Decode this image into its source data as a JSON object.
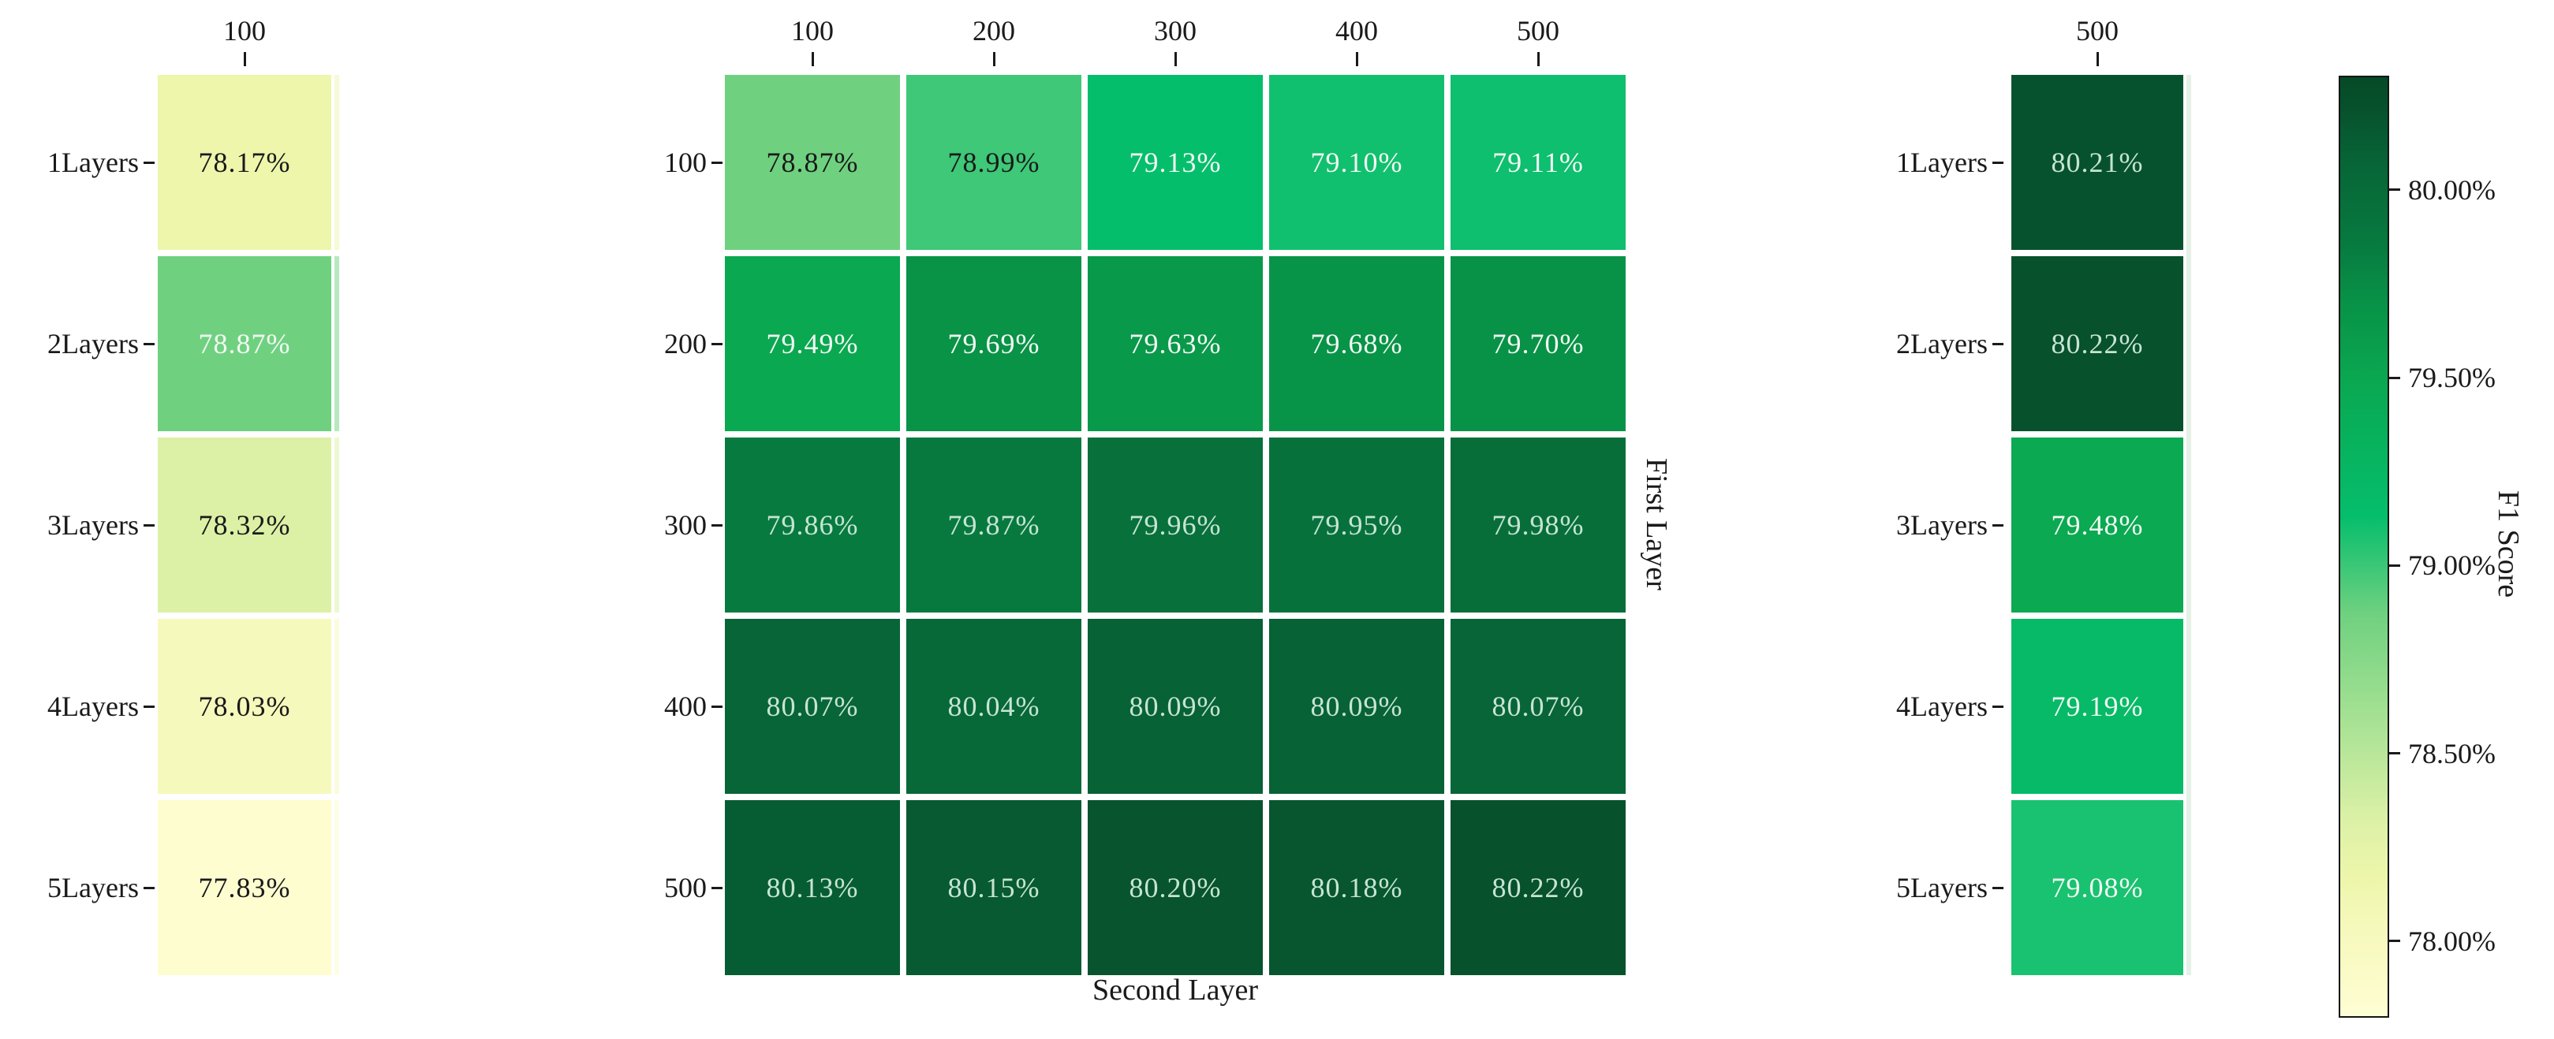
{
  "figure": {
    "background": "#ffffff",
    "text_color": "#1a1a1a"
  },
  "chart_data": {
    "type": "heatmap",
    "value_unit": "%",
    "shared_colormap": {
      "vmin": 77.8,
      "vmax": 80.3,
      "stops": [
        [
          77.8,
          "#ffffd8"
        ],
        [
          77.83,
          "#fdfdd0"
        ],
        [
          78.03,
          "#f6f9bc"
        ],
        [
          78.17,
          "#edf6ab"
        ],
        [
          78.32,
          "#dcf1a6"
        ],
        [
          78.87,
          "#6fd180"
        ],
        [
          78.99,
          "#3ec877"
        ],
        [
          79.13,
          "#05be6c"
        ],
        [
          79.49,
          "#0aa851"
        ],
        [
          79.7,
          "#089247"
        ],
        [
          79.86,
          "#077a3f"
        ],
        [
          80.07,
          "#076537"
        ],
        [
          80.22,
          "#07512d"
        ],
        [
          80.3,
          "#054a27"
        ]
      ],
      "dark_text_color": "#1a1a1a",
      "light_text_color": "#f2f8f3",
      "mint_text_color": "#c6e4d3",
      "mint_text_min": 79.8
    },
    "heatmaps": [
      {
        "id": "left",
        "col_labels": [
          "100"
        ],
        "row_labels": [
          "1Layers",
          "2Layers",
          "3Layers",
          "4Layers",
          "5Layers"
        ],
        "values": [
          [
            78.17
          ],
          [
            78.87
          ],
          [
            78.32
          ],
          [
            78.03
          ],
          [
            77.83
          ]
        ],
        "cell_texts": [
          [
            "78.17%"
          ],
          [
            "78.87%"
          ],
          [
            "78.32%"
          ],
          [
            "78.03%"
          ],
          [
            "77.83%"
          ]
        ],
        "white_text_min": 78.6
      },
      {
        "id": "center",
        "col_labels": [
          "100",
          "200",
          "300",
          "400",
          "500"
        ],
        "row_labels": [
          "100",
          "200",
          "300",
          "400",
          "500"
        ],
        "xlabel": "Second Layer",
        "ylabel_right": "First Layer",
        "values": [
          [
            78.87,
            78.99,
            79.13,
            79.1,
            79.11
          ],
          [
            79.49,
            79.69,
            79.63,
            79.68,
            79.7
          ],
          [
            79.86,
            79.87,
            79.96,
            79.95,
            79.98
          ],
          [
            80.07,
            80.04,
            80.09,
            80.09,
            80.07
          ],
          [
            80.13,
            80.15,
            80.2,
            80.18,
            80.22
          ]
        ],
        "cell_texts": [
          [
            "78.87%",
            "78.99%",
            "79.13%",
            "79.10%",
            "79.11%"
          ],
          [
            "79.49%",
            "79.69%",
            "79.63%",
            "79.68%",
            "79.70%"
          ],
          [
            "79.86%",
            "79.87%",
            "79.96%",
            "79.95%",
            "79.98%"
          ],
          [
            "80.07%",
            "80.04%",
            "80.09%",
            "80.09%",
            "80.07%"
          ],
          [
            "80.13%",
            "80.15%",
            "80.20%",
            "80.18%",
            "80.22%"
          ]
        ],
        "white_text_min": 79.05
      },
      {
        "id": "right",
        "col_labels": [
          "500"
        ],
        "row_labels": [
          "1Layers",
          "2Layers",
          "3Layers",
          "4Layers",
          "5Layers"
        ],
        "values": [
          [
            80.21
          ],
          [
            80.22
          ],
          [
            79.48
          ],
          [
            79.19
          ],
          [
            79.08
          ]
        ],
        "cell_texts": [
          [
            "80.21%"
          ],
          [
            "80.22%"
          ],
          [
            "79.48%"
          ],
          [
            "79.19%"
          ],
          [
            "79.08%"
          ]
        ],
        "white_text_min": 0
      }
    ],
    "colorbar": {
      "label": "F1 Score",
      "ticks": [
        {
          "value": 80.0,
          "label": "80.00%"
        },
        {
          "value": 79.5,
          "label": "79.50%"
        },
        {
          "value": 79.0,
          "label": "79.00%"
        },
        {
          "value": 78.5,
          "label": "78.50%"
        },
        {
          "value": 78.0,
          "label": "78.00%"
        }
      ]
    }
  }
}
